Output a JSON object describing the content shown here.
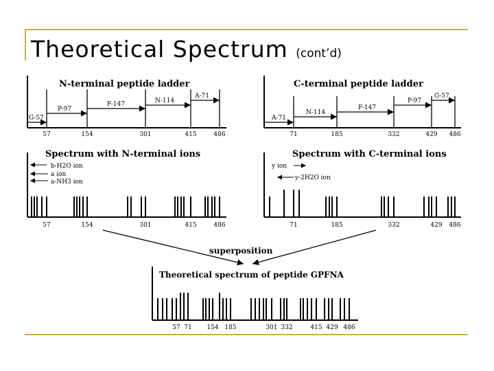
{
  "slide": {
    "title": "Theoretical Spectrum",
    "title_suffix": "(cont’d)",
    "accent_color": "#c9b23d"
  },
  "n_ladder": {
    "title": "N-terminal peptide ladder",
    "segments": [
      "G-57",
      "P-97",
      "F-147",
      "N-114",
      "A-71"
    ],
    "ticks": [
      "57",
      "154",
      "301",
      "415",
      "486"
    ]
  },
  "c_ladder": {
    "title": "C-terminal peptide ladder",
    "segments": [
      "A-71",
      "N-114",
      "F-147",
      "P-97",
      "G-57"
    ],
    "ticks": [
      "71",
      "185",
      "332",
      "429",
      "486"
    ]
  },
  "n_spectrum": {
    "title": "Spectrum with N-terminal ions",
    "legend": [
      "b-H2O ion",
      "a ion",
      "a-NH3 ion"
    ],
    "ticks": [
      "57",
      "154",
      "301",
      "415",
      "486"
    ]
  },
  "c_spectrum": {
    "title": "Spectrum with C-terminal ions",
    "legend": [
      "y ion",
      "y-2H2O ion"
    ],
    "ticks": [
      "71",
      "185",
      "332",
      "429",
      "486"
    ]
  },
  "superposition_label": "superposition",
  "combined": {
    "title": "Theoretical spectrum of peptide GPFNA",
    "ticks": [
      "57",
      "71",
      "154",
      "185",
      "301",
      "332",
      "415",
      "429",
      "486"
    ]
  }
}
